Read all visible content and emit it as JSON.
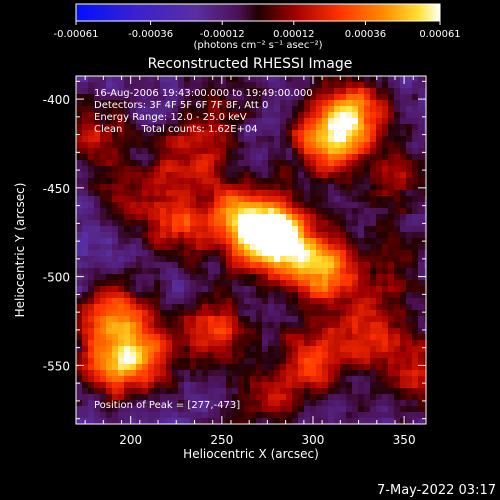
{
  "chart_data": {
    "type": "heatmap",
    "title": "Reconstructed RHESSI Image",
    "xlabel": "Heliocentric X (arcsec)",
    "ylabel": "Heliocentric Y (arcsec)",
    "xlim": [
      170,
      362
    ],
    "ylim": [
      -583,
      -387
    ],
    "x_ticks": [
      200,
      250,
      300,
      350
    ],
    "y_ticks": [
      -400,
      -450,
      -500,
      -550
    ],
    "colorbar": {
      "min": -0.00061,
      "max": 0.00061,
      "tick_values": [
        -0.00061,
        -0.00036,
        -0.00012,
        0.00012,
        0.00036,
        0.00061
      ],
      "tick_labels": [
        "-0.00061",
        "-0.00036",
        "-0.00012",
        "0.00012",
        "0.00036",
        "0.00061"
      ],
      "units_label": "(photons cm⁻² s⁻¹ asec⁻²)",
      "colormap": "blue-purple-red-yellow-white"
    },
    "annotations": [
      "16-Aug-2006 19:43:00.000 to 19:49:00.000",
      "Detectors: 3F 4F 5F 6F 7F 8F, Att 0",
      "Energy Range: 12.0 - 25.0 keV",
      "Clean      Total counts: 1.62E+04",
      "Position of Peak = [277,-473]"
    ],
    "peak": {
      "x": 277,
      "y": -473
    },
    "sources": [
      {
        "x": 280,
        "y": -478,
        "amplitude": 1.0
      },
      {
        "x": 262,
        "y": -468,
        "amplitude": 0.7
      },
      {
        "x": 305,
        "y": -495,
        "amplitude": 0.75
      },
      {
        "x": 320,
        "y": -410,
        "amplitude": 0.8
      },
      {
        "x": 305,
        "y": -425,
        "amplitude": 0.55
      },
      {
        "x": 225,
        "y": -470,
        "amplitude": 0.5
      },
      {
        "x": 235,
        "y": -430,
        "amplitude": 0.45
      },
      {
        "x": 190,
        "y": -520,
        "amplitude": 0.55
      },
      {
        "x": 205,
        "y": -545,
        "amplitude": 0.6
      },
      {
        "x": 185,
        "y": -550,
        "amplitude": 0.45
      },
      {
        "x": 245,
        "y": -530,
        "amplitude": 0.5
      },
      {
        "x": 300,
        "y": -550,
        "amplitude": 0.5
      },
      {
        "x": 330,
        "y": -530,
        "amplitude": 0.45
      },
      {
        "x": 355,
        "y": -555,
        "amplitude": 0.4
      },
      {
        "x": 180,
        "y": -420,
        "amplitude": 0.35
      },
      {
        "x": 345,
        "y": -445,
        "amplitude": 0.35
      },
      {
        "x": 200,
        "y": -450,
        "amplitude": 0.3
      },
      {
        "x": 275,
        "y": -570,
        "amplitude": 0.3
      },
      {
        "x": 250,
        "y": -400,
        "amplitude": 0.2
      },
      {
        "x": 345,
        "y": -495,
        "amplitude": 0.25
      }
    ]
  },
  "timestamp": "7-May-2022 03:17"
}
